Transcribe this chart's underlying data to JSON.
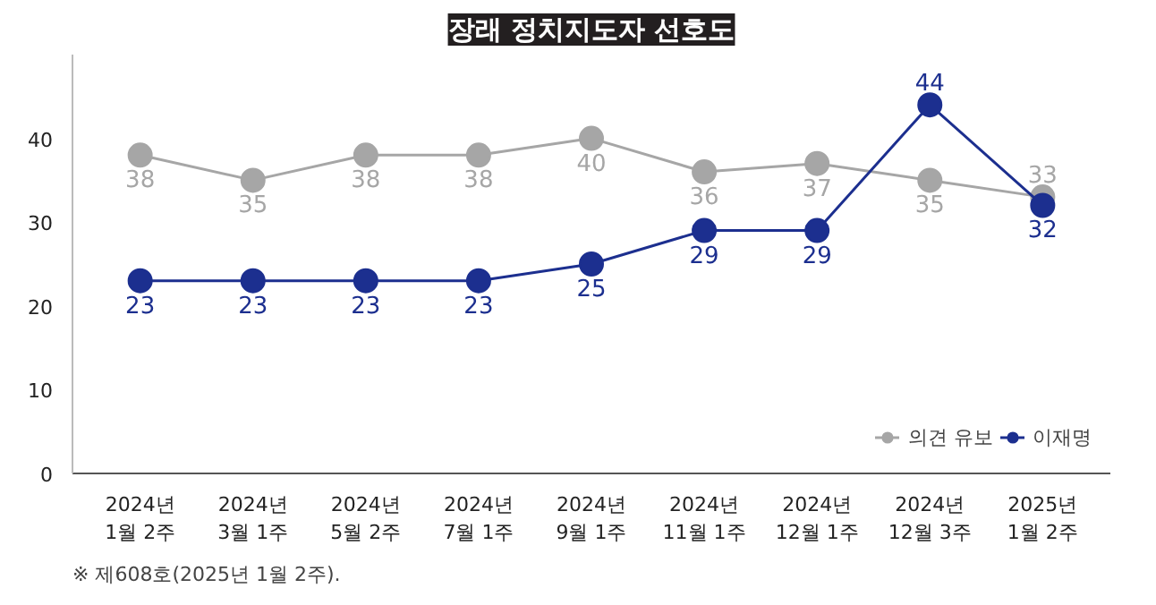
{
  "chart_data": {
    "type": "line",
    "title": "장래 정치지도자 선호도",
    "categories": [
      "2024년\n1월 2주",
      "2024년\n3월 1주",
      "2024년\n5월 2주",
      "2024년\n7월 1주",
      "2024년\n9월 1주",
      "2024년\n11월 1주",
      "2024년\n12월 1주",
      "2024년\n12월 3주",
      "2025년\n1월 2주"
    ],
    "series": [
      {
        "name": "의견 유보",
        "color": "#a6a6a6",
        "values": [
          38,
          35,
          38,
          38,
          40,
          36,
          37,
          35,
          33
        ]
      },
      {
        "name": "이재명",
        "color": "#1c2f8f",
        "values": [
          23,
          23,
          23,
          23,
          25,
          29,
          29,
          44,
          32
        ]
      }
    ],
    "ylim": [
      0,
      50
    ],
    "yticks": [
      0,
      10,
      20,
      30,
      40
    ],
    "grid": false,
    "legend": "bottom right",
    "marker": "circle",
    "line_style": "solid",
    "data_labels": true,
    "annotations": [
      "※ 제608호(2025년 1월 2주)."
    ]
  }
}
